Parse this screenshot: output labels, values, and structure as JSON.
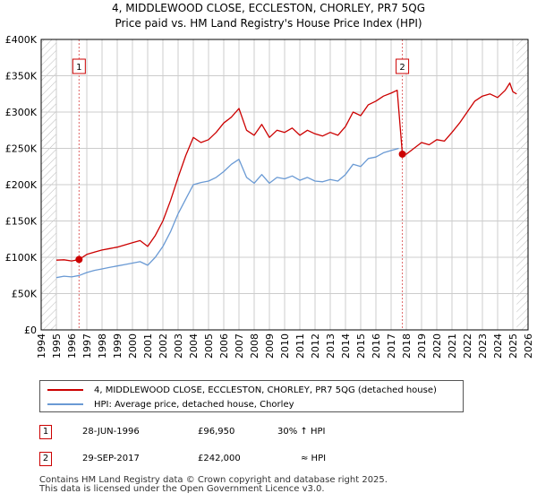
{
  "title_line1": "4, MIDDLEWOOD CLOSE, ECCLESTON, CHORLEY, PR7 5QG",
  "title_line2": "Price paid vs. HM Land Registry's House Price Index (HPI)",
  "colors": {
    "price_line": "#cc0000",
    "hpi_line": "#6a9ad4",
    "marker": "#cc0000",
    "vline": "#e06666",
    "grid": "#cccccc",
    "hatch": "#bbbbbb"
  },
  "chart_data": {
    "type": "line",
    "xlim": [
      1994,
      2026
    ],
    "ylim": [
      0,
      400000
    ],
    "x_ticks": [
      "1994",
      "1995",
      "1996",
      "1997",
      "1998",
      "1999",
      "2000",
      "2001",
      "2002",
      "2003",
      "2004",
      "2005",
      "2006",
      "2007",
      "2008",
      "2009",
      "2010",
      "2011",
      "2012",
      "2013",
      "2014",
      "2015",
      "2016",
      "2017",
      "2018",
      "2019",
      "2020",
      "2021",
      "2022",
      "2023",
      "2024",
      "2025",
      "2026"
    ],
    "y_ticks": [
      {
        "value": 0,
        "label": "£0"
      },
      {
        "value": 50000,
        "label": "£50K"
      },
      {
        "value": 100000,
        "label": "£100K"
      },
      {
        "value": 150000,
        "label": "£150K"
      },
      {
        "value": 200000,
        "label": "£200K"
      },
      {
        "value": 250000,
        "label": "£250K"
      },
      {
        "value": 300000,
        "label": "£300K"
      },
      {
        "value": 350000,
        "label": "£350K"
      },
      {
        "value": 400000,
        "label": "£400K"
      }
    ],
    "hatched_ranges": [
      [
        1994,
        1995
      ],
      [
        2025.25,
        2026
      ]
    ],
    "series": [
      {
        "name": "4, MIDDLEWOOD CLOSE, ECCLESTON, CHORLEY, PR7 5QG (detached house)",
        "color": "#cc0000",
        "x": [
          1995.0,
          1995.5,
          1996.0,
          1996.49,
          1997.0,
          1997.5,
          1998.0,
          1998.5,
          1999.0,
          1999.5,
          2000.0,
          2000.5,
          2001.0,
          2001.5,
          2002.0,
          2002.5,
          2003.0,
          2003.5,
          2004.0,
          2004.5,
          2005.0,
          2005.5,
          2006.0,
          2006.5,
          2007.0,
          2007.5,
          2008.0,
          2008.5,
          2009.0,
          2009.5,
          2010.0,
          2010.5,
          2011.0,
          2011.5,
          2012.0,
          2012.5,
          2013.0,
          2013.5,
          2014.0,
          2014.5,
          2015.0,
          2015.5,
          2016.0,
          2016.5,
          2017.0,
          2017.4,
          2017.74,
          2018.0,
          2018.5,
          2019.0,
          2019.5,
          2020.0,
          2020.5,
          2021.0,
          2021.5,
          2022.0,
          2022.5,
          2023.0,
          2023.5,
          2024.0,
          2024.5,
          2024.8,
          2025.0,
          2025.25
        ],
        "y": [
          96000,
          96500,
          95000,
          96950,
          104000,
          107000,
          110000,
          112000,
          114000,
          117000,
          120000,
          123000,
          115000,
          130000,
          150000,
          178000,
          210000,
          240000,
          265000,
          258000,
          262000,
          272000,
          285000,
          293000,
          305000,
          275000,
          268000,
          283000,
          265000,
          275000,
          272000,
          278000,
          268000,
          275000,
          270000,
          267000,
          272000,
          268000,
          280000,
          300000,
          295000,
          310000,
          315000,
          322000,
          326000,
          330000,
          242000,
          242000,
          250000,
          258000,
          255000,
          262000,
          260000,
          272000,
          285000,
          300000,
          315000,
          322000,
          325000,
          320000,
          330000,
          340000,
          328000,
          325000
        ]
      },
      {
        "name": "HPI: Average price, detached house, Chorley",
        "color": "#6a9ad4",
        "x": [
          1995.0,
          1995.5,
          1996.0,
          1996.5,
          1997.0,
          1997.5,
          1998.0,
          1998.5,
          1999.0,
          1999.5,
          2000.0,
          2000.5,
          2001.0,
          2001.5,
          2002.0,
          2002.5,
          2003.0,
          2003.5,
          2004.0,
          2004.5,
          2005.0,
          2005.5,
          2006.0,
          2006.5,
          2007.0,
          2007.5,
          2008.0,
          2008.5,
          2009.0,
          2009.5,
          2010.0,
          2010.5,
          2011.0,
          2011.5,
          2012.0,
          2012.5,
          2013.0,
          2013.5,
          2014.0,
          2014.5,
          2015.0,
          2015.5,
          2016.0,
          2016.5,
          2017.0,
          2017.5
        ],
        "y": [
          72000,
          74000,
          73000,
          75000,
          79000,
          82000,
          84000,
          86000,
          88000,
          90000,
          92000,
          94000,
          89000,
          100000,
          115000,
          135000,
          160000,
          180000,
          200000,
          203000,
          205000,
          210000,
          218000,
          228000,
          235000,
          210000,
          202000,
          214000,
          202000,
          210000,
          208000,
          212000,
          206000,
          210000,
          205000,
          204000,
          207000,
          205000,
          214000,
          228000,
          225000,
          236000,
          238000,
          244000,
          247000,
          250000
        ]
      }
    ],
    "sales": [
      {
        "marker": "1",
        "x": 1996.49,
        "y": 96950
      },
      {
        "marker": "2",
        "x": 2017.74,
        "y": 242000
      }
    ]
  },
  "legend": {
    "price_label": "4, MIDDLEWOOD CLOSE, ECCLESTON, CHORLEY, PR7 5QG (detached house)",
    "hpi_label": "HPI: Average price, detached house, Chorley"
  },
  "sales_table": [
    {
      "marker": "1",
      "date": "28-JUN-1996",
      "price": "£96,950",
      "hpi": "30% ↑ HPI"
    },
    {
      "marker": "2",
      "date": "29-SEP-2017",
      "price": "£242,000",
      "hpi": "≈ HPI"
    }
  ],
  "footer_line1": "Contains HM Land Registry data © Crown copyright and database right 2025.",
  "footer_line2": "This data is licensed under the Open Government Licence v3.0."
}
